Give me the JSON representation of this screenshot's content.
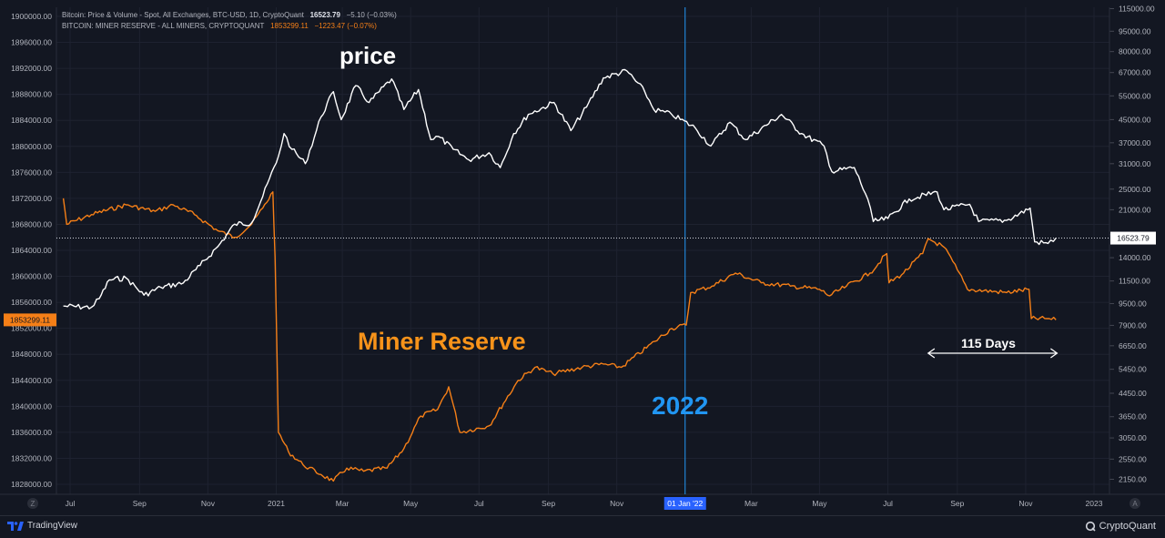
{
  "legend": {
    "series1_label": "Bitcoin: Price & Volume - Spot, All Exchanges, BTC-USD, 1D, CryptoQuant",
    "series1_value": "16523.79",
    "series1_change": "−5.10 (−0.03%)",
    "series2_label": "BITCOIN: MINER RESERVE - ALL MINERS, CRYPTOQUANT",
    "series2_value": "1853299.11",
    "series2_change": "−1223.47 (−0.07%)"
  },
  "annotations": {
    "price": "price",
    "miner_reserve": "Miner Reserve",
    "year": "2022",
    "days": "115 Days"
  },
  "axis_buttons": {
    "left": "Z",
    "right": "A"
  },
  "footer": {
    "left_logo": "TradingView",
    "right_logo": "CryptoQuant"
  },
  "colors": {
    "background": "#131722",
    "price": "#ffffff",
    "miner_reserve": "#f57f17",
    "marker": "#2196f3"
  },
  "chart_data": {
    "type": "line",
    "x_ticks": [
      "Jul",
      "Sep",
      "Nov",
      "2021",
      "Mar",
      "May",
      "Jul",
      "Sep",
      "Nov",
      "01 Jan '22",
      "Mar",
      "May",
      "Jul",
      "Sep",
      "Nov",
      "2023"
    ],
    "x_tick_dates": [
      "2020-07-01",
      "2020-09-01",
      "2020-11-01",
      "2021-01-01",
      "2021-03-01",
      "2021-05-01",
      "2021-07-01",
      "2021-09-01",
      "2021-11-01",
      "2022-01-01",
      "2022-03-01",
      "2022-05-01",
      "2022-07-01",
      "2022-09-01",
      "2022-11-01",
      "2023-01-01"
    ],
    "left_axis": {
      "ticks": [
        "1900000.00",
        "1896000.00",
        "1892000.00",
        "1888000.00",
        "1884000.00",
        "1880000.00",
        "1876000.00",
        "1872000.00",
        "1868000.00",
        "1864000.00",
        "1860000.00",
        "1856000.00",
        "1852000.00",
        "1848000.00",
        "1844000.00",
        "1840000.00",
        "1836000.00",
        "1832000.00",
        "1828000.00"
      ],
      "current_label": "1853299.11"
    },
    "right_axis": {
      "scale": "log",
      "ticks": [
        "115000.00",
        "95000.00",
        "80000.00",
        "67000.00",
        "55000.00",
        "45000.00",
        "37000.00",
        "31000.00",
        "25000.00",
        "21000.00",
        "17000.00",
        "14000.00",
        "11500.00",
        "9500.00",
        "7900.00",
        "6650.00",
        "5450.00",
        "4450.00",
        "3650.00",
        "3050.00",
        "2550.00",
        "2150.00"
      ],
      "current_label": "16523.79"
    },
    "series": [
      {
        "name": "Bitcoin: Price & Volume - Spot, All Exchanges, BTC-USD, 1D, CryptoQuant",
        "axis": "right",
        "x": [
          "2020-06-25",
          "2020-07-20",
          "2020-07-27",
          "2020-08-05",
          "2020-08-20",
          "2020-09-05",
          "2020-09-20",
          "2020-10-10",
          "2020-10-25",
          "2020-11-10",
          "2020-11-25",
          "2020-12-10",
          "2020-12-20",
          "2021-01-03",
          "2021-01-08",
          "2021-01-15",
          "2021-01-27",
          "2021-02-10",
          "2021-02-21",
          "2021-02-28",
          "2021-03-13",
          "2021-03-25",
          "2021-04-14",
          "2021-04-25",
          "2021-05-08",
          "2021-05-19",
          "2021-05-26",
          "2021-06-08",
          "2021-06-22",
          "2021-07-10",
          "2021-07-20",
          "2021-08-01",
          "2021-08-14",
          "2021-09-06",
          "2021-09-21",
          "2021-10-05",
          "2021-10-20",
          "2021-11-10",
          "2021-11-26",
          "2021-12-04",
          "2021-12-20",
          "2022-01-10",
          "2022-01-24",
          "2022-02-10",
          "2022-02-24",
          "2022-03-28",
          "2022-04-15",
          "2022-05-05",
          "2022-05-12",
          "2022-06-01",
          "2022-06-13",
          "2022-06-18",
          "2022-07-01",
          "2022-07-20",
          "2022-08-14",
          "2022-08-20",
          "2022-09-12",
          "2022-09-20",
          "2022-10-15",
          "2022-11-05",
          "2022-11-09",
          "2022-11-21",
          "2022-11-28"
        ],
        "y": [
          9300,
          9200,
          9900,
          11600,
          11800,
          10200,
          10900,
          11300,
          13100,
          15400,
          18600,
          18800,
          23500,
          33000,
          40000,
          35000,
          31000,
          46000,
          57000,
          45000,
          60000,
          52000,
          63500,
          49000,
          58000,
          38000,
          39000,
          35000,
          32000,
          34000,
          30000,
          40000,
          47000,
          52000,
          41000,
          50000,
          64000,
          68000,
          57000,
          49000,
          47000,
          42000,
          36000,
          44000,
          38000,
          47000,
          40000,
          36000,
          29000,
          30000,
          23000,
          19000,
          19500,
          23000,
          24400,
          21000,
          22000,
          19000,
          19200,
          21300,
          16000,
          15800,
          16523.79
        ]
      },
      {
        "name": "BITCOIN: MINER RESERVE - ALL MINERS, CRYPTOQUANT",
        "axis": "left",
        "x": [
          "2020-06-25",
          "2020-06-28",
          "2020-07-20",
          "2020-08-20",
          "2020-09-15",
          "2020-10-01",
          "2020-10-20",
          "2020-11-10",
          "2020-11-25",
          "2020-12-10",
          "2020-12-20",
          "2020-12-29",
          "2020-12-31",
          "2021-01-03",
          "2021-01-12",
          "2021-01-25",
          "2021-02-10",
          "2021-02-21",
          "2021-03-05",
          "2021-03-20",
          "2021-04-10",
          "2021-04-25",
          "2021-05-10",
          "2021-05-25",
          "2021-06-04",
          "2021-06-14",
          "2021-07-10",
          "2021-08-05",
          "2021-08-20",
          "2021-09-05",
          "2021-10-01",
          "2021-10-20",
          "2021-11-05",
          "2021-12-05",
          "2021-12-20",
          "2022-01-02",
          "2022-01-06",
          "2022-01-25",
          "2022-02-15",
          "2022-03-10",
          "2022-04-05",
          "2022-05-01",
          "2022-05-10",
          "2022-05-25",
          "2022-06-15",
          "2022-06-30",
          "2022-07-02",
          "2022-07-15",
          "2022-08-01",
          "2022-08-06",
          "2022-08-20",
          "2022-09-01",
          "2022-09-10",
          "2022-10-15",
          "2022-11-04",
          "2022-11-06",
          "2022-11-20",
          "2022-11-28"
        ],
        "y": [
          1872000,
          1868000,
          1869500,
          1871000,
          1870000,
          1871000,
          1869500,
          1867000,
          1866000,
          1868000,
          1870500,
          1873000,
          1863000,
          1836000,
          1833000,
          1831000,
          1829500,
          1828500,
          1830500,
          1830000,
          1830500,
          1833500,
          1838500,
          1839500,
          1843000,
          1836000,
          1837000,
          1844000,
          1846000,
          1845000,
          1846000,
          1846500,
          1846000,
          1850000,
          1852000,
          1852500,
          1857500,
          1858500,
          1860500,
          1859000,
          1858500,
          1858000,
          1857000,
          1858500,
          1860500,
          1863500,
          1859000,
          1860500,
          1863500,
          1865800,
          1864500,
          1861000,
          1858000,
          1857500,
          1858000,
          1853500,
          1853500,
          1853299.11
        ]
      }
    ],
    "markers": [
      {
        "label": "2022",
        "x": "2022-01-01"
      },
      {
        "label": "115 Days",
        "from": "2022-08-06",
        "to": "2022-11-29"
      }
    ],
    "grid": true
  }
}
